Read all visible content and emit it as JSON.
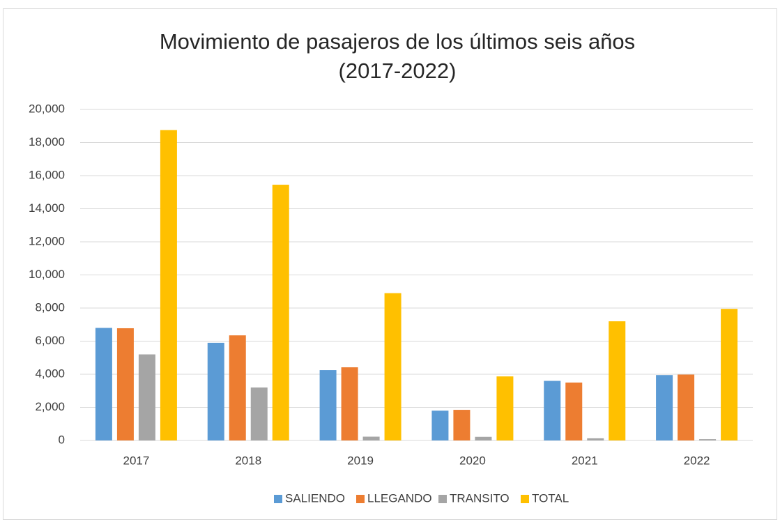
{
  "chart_data": {
    "type": "bar",
    "title": "Movimiento de pasajeros de los últimos seis años",
    "subtitle": "(2017-2022)",
    "categories": [
      "2017",
      "2018",
      "2019",
      "2020",
      "2021",
      "2022"
    ],
    "series": [
      {
        "name": "SALIENDO",
        "color": "#5b9bd5",
        "values": [
          6800,
          5900,
          4250,
          1800,
          3600,
          3950
        ]
      },
      {
        "name": "LLEGANDO",
        "color": "#ed7d31",
        "values": [
          6780,
          6350,
          4420,
          1850,
          3500,
          3980
        ]
      },
      {
        "name": "TRANSITO",
        "color": "#a5a5a5",
        "values": [
          5200,
          3200,
          230,
          220,
          130,
          80
        ]
      },
      {
        "name": "TOTAL",
        "color": "#ffc000",
        "values": [
          18750,
          15450,
          8900,
          3870,
          7200,
          7950
        ]
      }
    ],
    "ylim": [
      0,
      20000
    ],
    "yticks": [
      0,
      {
        "value": 2000,
        "label": "2,000"
      },
      {
        "value": 4000,
        "label": "4,000"
      },
      {
        "value": 6000,
        "label": "6,000"
      },
      {
        "value": 8000,
        "label": "8,000"
      },
      {
        "value": 10000,
        "label": "10,000"
      },
      {
        "value": 12000,
        "label": "12,000"
      },
      {
        "value": 14000,
        "label": "14,000"
      },
      {
        "value": 16000,
        "label": "16,000"
      },
      {
        "value": 18000,
        "label": "18,000"
      },
      {
        "value": 20000,
        "label": "20,000"
      }
    ],
    "grid": true,
    "legend": "bottom"
  }
}
